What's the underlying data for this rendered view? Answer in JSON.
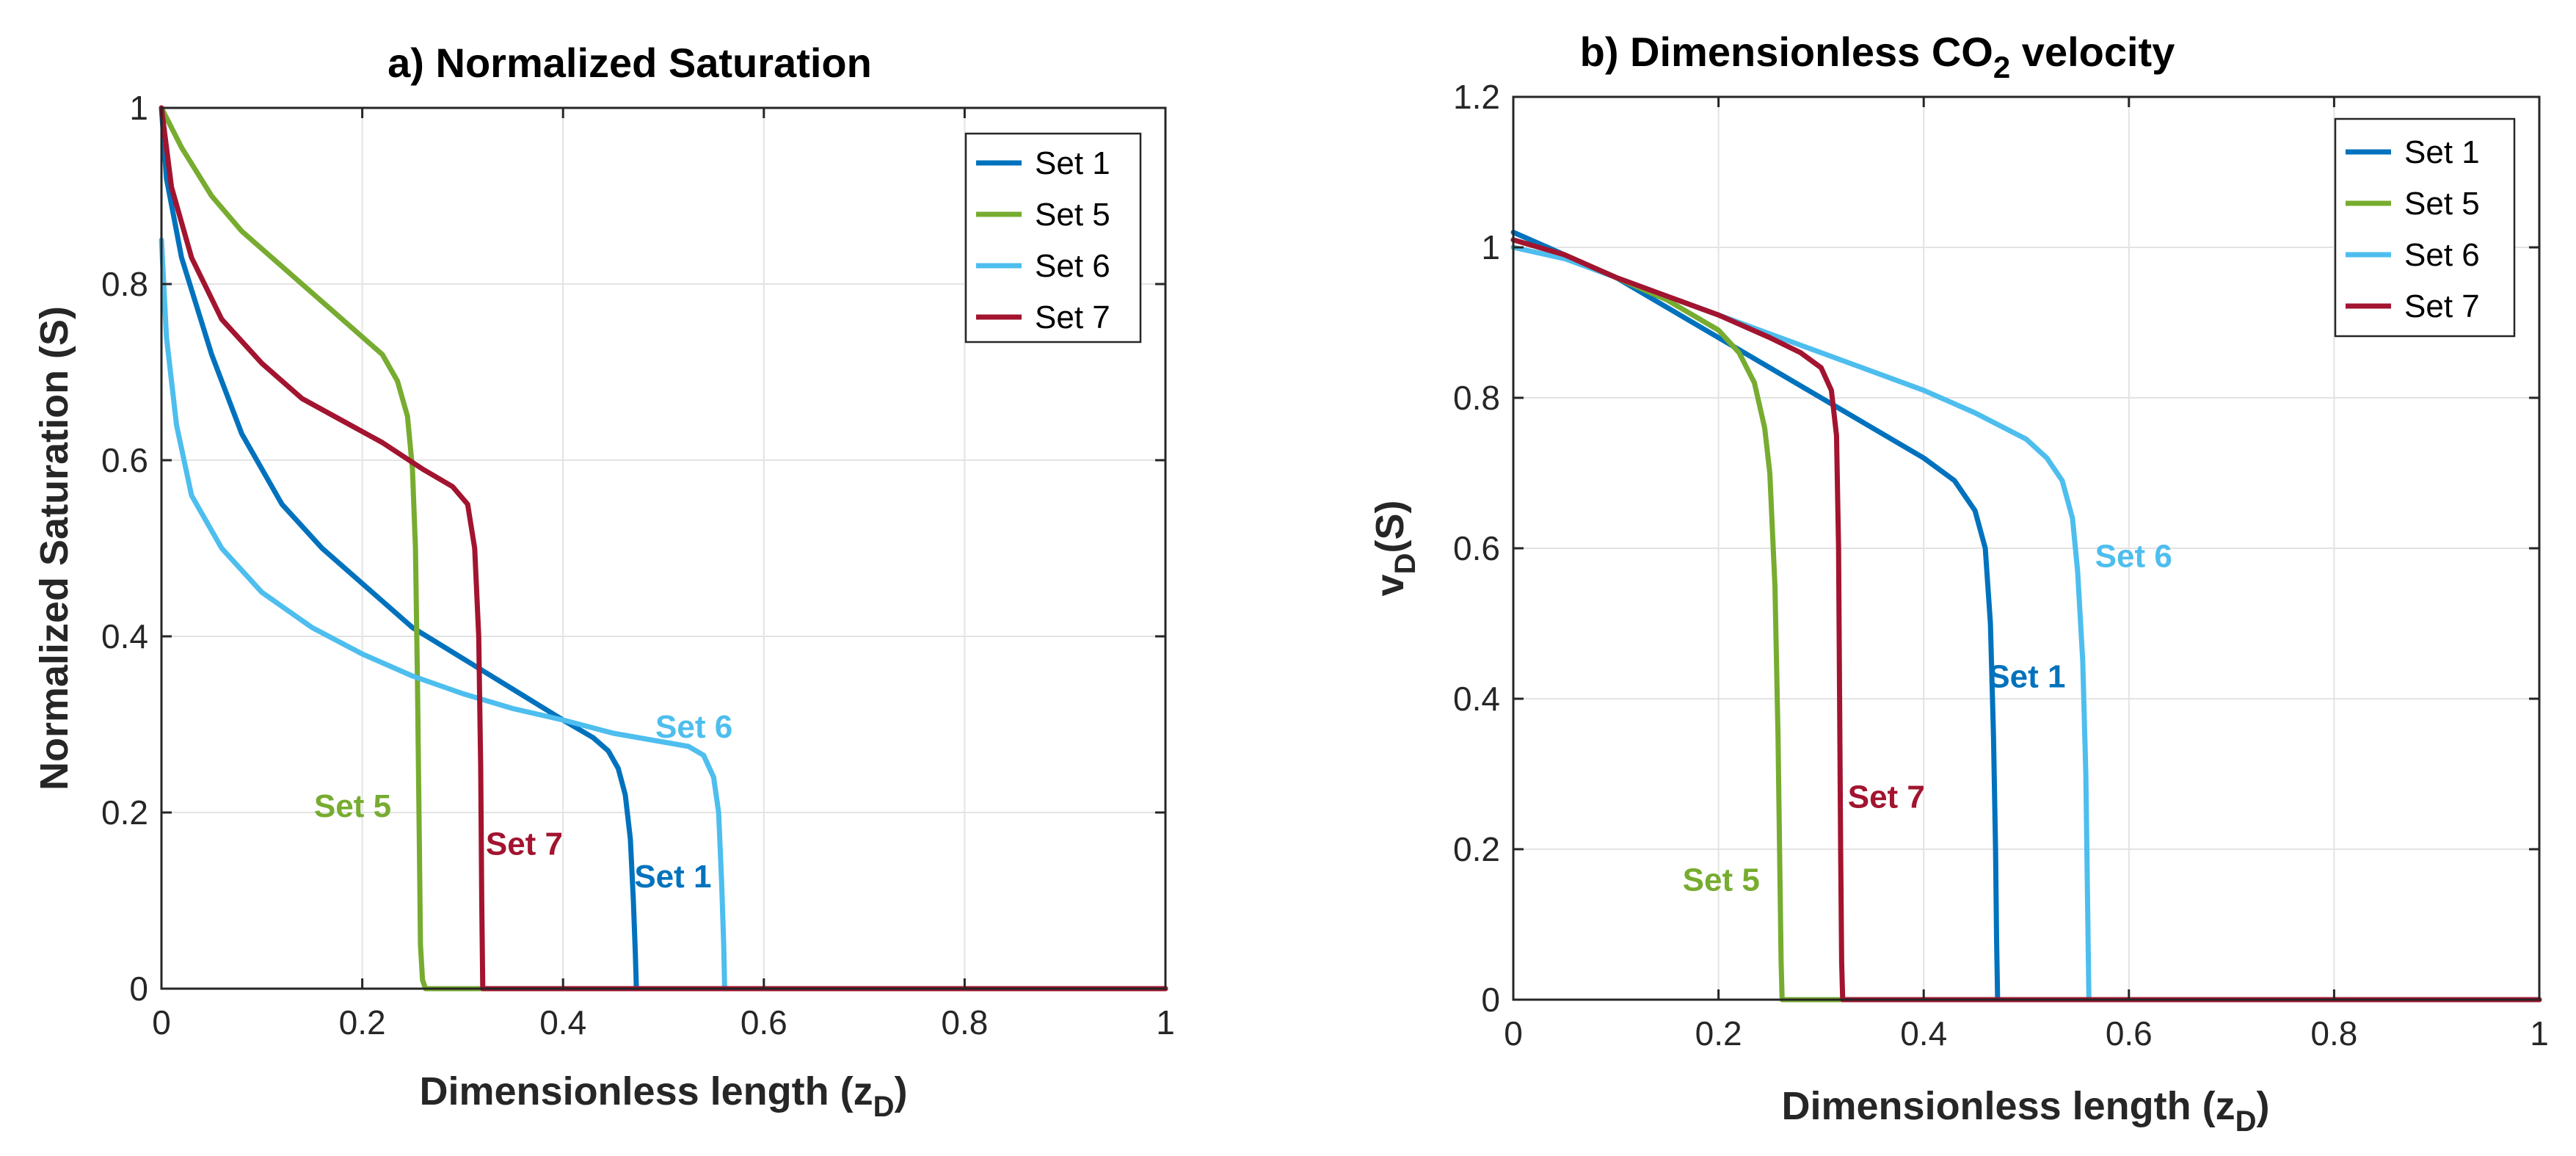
{
  "colors": {
    "Set 1": "#0072BD",
    "Set 5": "#77AC30",
    "Set 6": "#4DBEEE",
    "Set 7": "#A2142F"
  },
  "chart_data": [
    {
      "type": "line",
      "title": "a) Normalized Saturation",
      "xlabel_main": "Dimensionless length (z",
      "xlabel_sub": "D",
      "xlabel_end": ")",
      "ylabel": "Normalized Saturation (S)",
      "xlim": [
        0,
        1
      ],
      "ylim": [
        0,
        1
      ],
      "xticks": [
        "0",
        "0.2",
        "0.4",
        "0.6",
        "0.8",
        "1"
      ],
      "yticks": [
        "0",
        "0.2",
        "0.4",
        "0.6",
        "0.8",
        "1"
      ],
      "legend": [
        "Set 1",
        "Set 5",
        "Set 6",
        "Set 7"
      ],
      "legend_position": "top-right",
      "series": [
        {
          "name": "Set 1",
          "points": [
            [
              0,
              1
            ],
            [
              0.005,
              0.92
            ],
            [
              0.02,
              0.83
            ],
            [
              0.05,
              0.72
            ],
            [
              0.08,
              0.63
            ],
            [
              0.12,
              0.55
            ],
            [
              0.16,
              0.5
            ],
            [
              0.2,
              0.46
            ],
            [
              0.25,
              0.41
            ],
            [
              0.3,
              0.375
            ],
            [
              0.35,
              0.34
            ],
            [
              0.4,
              0.305
            ],
            [
              0.43,
              0.285
            ],
            [
              0.445,
              0.27
            ],
            [
              0.455,
              0.25
            ],
            [
              0.462,
              0.22
            ],
            [
              0.467,
              0.17
            ],
            [
              0.47,
              0.1
            ],
            [
              0.472,
              0.04
            ],
            [
              0.473,
              0
            ],
            [
              1,
              0
            ]
          ]
        },
        {
          "name": "Set 5",
          "points": [
            [
              0,
              1
            ],
            [
              0.02,
              0.955
            ],
            [
              0.05,
              0.9
            ],
            [
              0.08,
              0.86
            ],
            [
              0.11,
              0.83
            ],
            [
              0.14,
              0.8
            ],
            [
              0.17,
              0.77
            ],
            [
              0.2,
              0.74
            ],
            [
              0.22,
              0.72
            ],
            [
              0.235,
              0.69
            ],
            [
              0.245,
              0.65
            ],
            [
              0.25,
              0.59
            ],
            [
              0.253,
              0.5
            ],
            [
              0.255,
              0.35
            ],
            [
              0.257,
              0.15
            ],
            [
              0.258,
              0.05
            ],
            [
              0.26,
              0.01
            ],
            [
              0.263,
              0
            ],
            [
              1,
              0
            ]
          ]
        },
        {
          "name": "Set 6",
          "points": [
            [
              0,
              0.85
            ],
            [
              0.005,
              0.74
            ],
            [
              0.015,
              0.64
            ],
            [
              0.03,
              0.56
            ],
            [
              0.06,
              0.5
            ],
            [
              0.1,
              0.45
            ],
            [
              0.15,
              0.41
            ],
            [
              0.2,
              0.38
            ],
            [
              0.25,
              0.355
            ],
            [
              0.3,
              0.335
            ],
            [
              0.35,
              0.318
            ],
            [
              0.4,
              0.305
            ],
            [
              0.45,
              0.29
            ],
            [
              0.5,
              0.28
            ],
            [
              0.525,
              0.275
            ],
            [
              0.54,
              0.265
            ],
            [
              0.55,
              0.24
            ],
            [
              0.555,
              0.2
            ],
            [
              0.558,
              0.12
            ],
            [
              0.56,
              0.05
            ],
            [
              0.561,
              0
            ],
            [
              1,
              0
            ]
          ]
        },
        {
          "name": "Set 7",
          "points": [
            [
              0,
              1
            ],
            [
              0.01,
              0.91
            ],
            [
              0.03,
              0.83
            ],
            [
              0.06,
              0.76
            ],
            [
              0.1,
              0.71
            ],
            [
              0.14,
              0.67
            ],
            [
              0.18,
              0.645
            ],
            [
              0.22,
              0.62
            ],
            [
              0.26,
              0.59
            ],
            [
              0.29,
              0.57
            ],
            [
              0.305,
              0.55
            ],
            [
              0.312,
              0.5
            ],
            [
              0.316,
              0.4
            ],
            [
              0.318,
              0.25
            ],
            [
              0.319,
              0.1
            ],
            [
              0.32,
              0
            ],
            [
              1,
              0
            ]
          ]
        }
      ],
      "annotations": [
        {
          "text": "Set 1",
          "series": "Set 1",
          "x": 0.471,
          "y": 0.115
        },
        {
          "text": "Set 5",
          "series": "Set 5",
          "x": 0.152,
          "y": 0.195
        },
        {
          "text": "Set 6",
          "series": "Set 6",
          "x": 0.492,
          "y": 0.285
        },
        {
          "text": "Set 7",
          "series": "Set 7",
          "x": 0.323,
          "y": 0.152
        }
      ]
    },
    {
      "type": "line",
      "title_main": "b) Dimensionless CO",
      "title_sub": "2",
      "title_end": " velocity",
      "xlabel_main": "Dimensionless length (z",
      "xlabel_sub": "D",
      "xlabel_end": ")",
      "ylabel_main": "v",
      "ylabel_sub": "D",
      "ylabel_end": "(S)",
      "xlim": [
        0,
        1
      ],
      "ylim": [
        0,
        1.2
      ],
      "xticks": [
        "0",
        "0.2",
        "0.4",
        "0.6",
        "0.8",
        "1"
      ],
      "yticks": [
        "0",
        "0.2",
        "0.4",
        "0.6",
        "0.8",
        "1",
        "1.2"
      ],
      "legend": [
        "Set 1",
        "Set 5",
        "Set 6",
        "Set 7"
      ],
      "legend_position": "top-right",
      "series": [
        {
          "name": "Set 1",
          "points": [
            [
              0,
              1.02
            ],
            [
              0.05,
              0.99
            ],
            [
              0.1,
              0.96
            ],
            [
              0.15,
              0.92
            ],
            [
              0.2,
              0.88
            ],
            [
              0.25,
              0.84
            ],
            [
              0.3,
              0.8
            ],
            [
              0.35,
              0.76
            ],
            [
              0.4,
              0.72
            ],
            [
              0.43,
              0.69
            ],
            [
              0.45,
              0.65
            ],
            [
              0.46,
              0.6
            ],
            [
              0.465,
              0.5
            ],
            [
              0.468,
              0.35
            ],
            [
              0.47,
              0.2
            ],
            [
              0.471,
              0.08
            ],
            [
              0.472,
              0
            ],
            [
              1,
              0
            ]
          ]
        },
        {
          "name": "Set 5",
          "points": [
            [
              0,
              1.01
            ],
            [
              0.05,
              0.99
            ],
            [
              0.1,
              0.96
            ],
            [
              0.15,
              0.93
            ],
            [
              0.2,
              0.89
            ],
            [
              0.22,
              0.86
            ],
            [
              0.235,
              0.82
            ],
            [
              0.245,
              0.76
            ],
            [
              0.25,
              0.7
            ],
            [
              0.255,
              0.55
            ],
            [
              0.258,
              0.35
            ],
            [
              0.26,
              0.15
            ],
            [
              0.261,
              0.05
            ],
            [
              0.262,
              0
            ],
            [
              1,
              0
            ]
          ]
        },
        {
          "name": "Set 6",
          "points": [
            [
              0,
              1.0
            ],
            [
              0.05,
              0.985
            ],
            [
              0.1,
              0.96
            ],
            [
              0.15,
              0.935
            ],
            [
              0.2,
              0.91
            ],
            [
              0.25,
              0.885
            ],
            [
              0.3,
              0.86
            ],
            [
              0.35,
              0.835
            ],
            [
              0.4,
              0.81
            ],
            [
              0.45,
              0.78
            ],
            [
              0.5,
              0.745
            ],
            [
              0.52,
              0.72
            ],
            [
              0.535,
              0.69
            ],
            [
              0.545,
              0.64
            ],
            [
              0.55,
              0.57
            ],
            [
              0.555,
              0.45
            ],
            [
              0.558,
              0.3
            ],
            [
              0.56,
              0.1
            ],
            [
              0.561,
              0
            ],
            [
              1,
              0
            ]
          ]
        },
        {
          "name": "Set 7",
          "points": [
            [
              0,
              1.01
            ],
            [
              0.05,
              0.99
            ],
            [
              0.1,
              0.96
            ],
            [
              0.15,
              0.935
            ],
            [
              0.2,
              0.91
            ],
            [
              0.25,
              0.88
            ],
            [
              0.28,
              0.86
            ],
            [
              0.3,
              0.84
            ],
            [
              0.31,
              0.81
            ],
            [
              0.315,
              0.75
            ],
            [
              0.317,
              0.6
            ],
            [
              0.318,
              0.4
            ],
            [
              0.319,
              0.2
            ],
            [
              0.32,
              0.05
            ],
            [
              0.321,
              0
            ],
            [
              1,
              0
            ]
          ]
        }
      ],
      "annotations": [
        {
          "text": "Set 1",
          "series": "Set 1",
          "x": 0.463,
          "y": 0.415
        },
        {
          "text": "Set 5",
          "series": "Set 5",
          "x": 0.165,
          "y": 0.145
        },
        {
          "text": "Set 6",
          "series": "Set 6",
          "x": 0.567,
          "y": 0.575
        },
        {
          "text": "Set 7",
          "series": "Set 7",
          "x": 0.326,
          "y": 0.255
        }
      ]
    }
  ]
}
